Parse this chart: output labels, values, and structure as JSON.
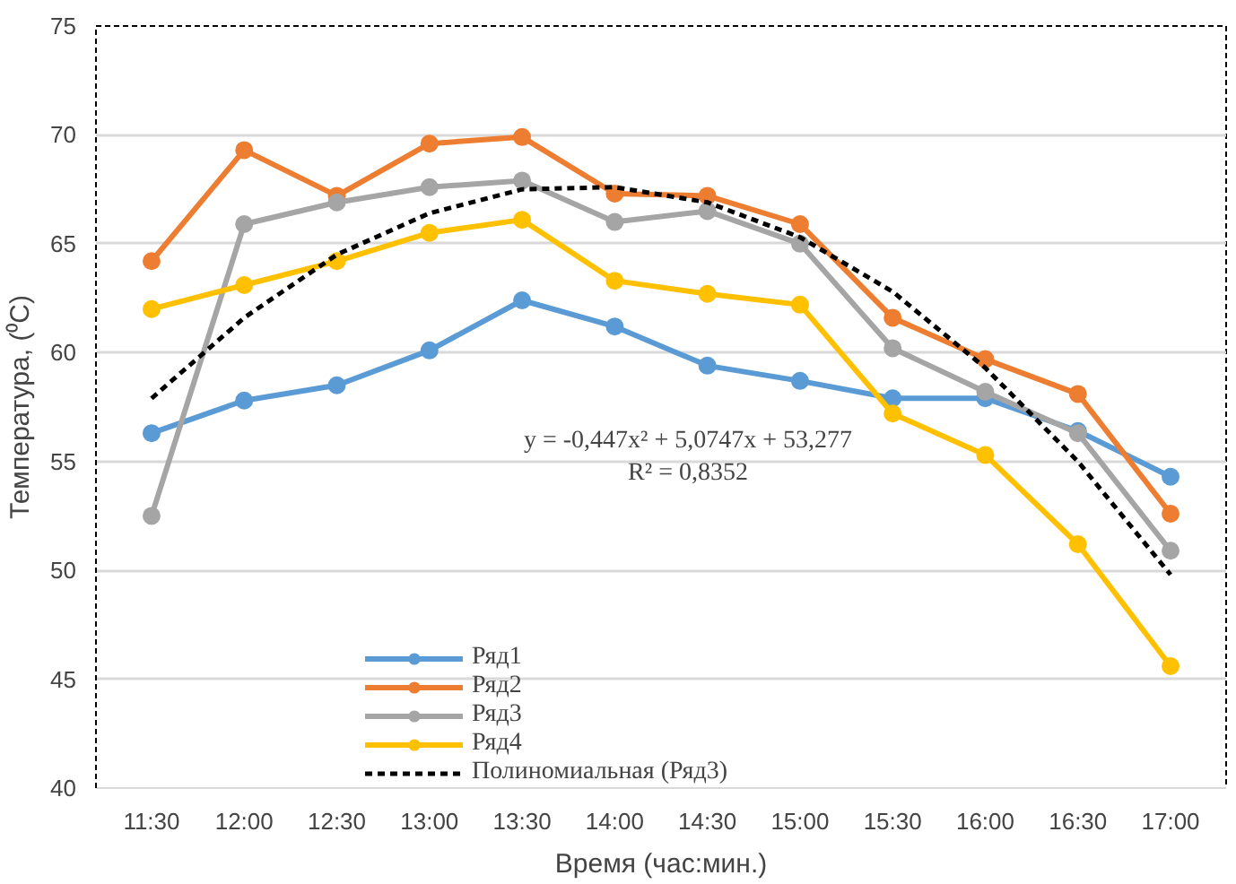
{
  "chart_data": {
    "type": "line",
    "xlabel": "Время (час:мин.)",
    "ylabel": "Температура, (⁰C)",
    "categories": [
      "11:30",
      "12:00",
      "12:30",
      "13:00",
      "13:30",
      "14:00",
      "14:30",
      "15:00",
      "15:30",
      "16:00",
      "16:30",
      "17:00"
    ],
    "series": [
      {
        "name": "Ряд1",
        "color": "#5b9bd5",
        "marker": "circle",
        "values": [
          56.3,
          57.8,
          58.5,
          60.1,
          62.4,
          61.2,
          59.4,
          58.7,
          57.9,
          57.9,
          56.4,
          54.3
        ]
      },
      {
        "name": "Ряд2",
        "color": "#ed7d31",
        "marker": "circle",
        "values": [
          64.2,
          69.3,
          67.2,
          69.6,
          69.9,
          67.3,
          67.2,
          65.9,
          61.6,
          59.7,
          58.1,
          52.6
        ]
      },
      {
        "name": "Ряд3",
        "color": "#a5a5a5",
        "marker": "circle",
        "values": [
          52.5,
          65.9,
          66.9,
          67.6,
          67.9,
          66.0,
          66.5,
          65.0,
          60.2,
          58.2,
          56.3,
          50.9
        ]
      },
      {
        "name": "Ряд4",
        "color": "#ffc000",
        "marker": "circle",
        "values": [
          62.0,
          63.1,
          64.2,
          65.5,
          66.1,
          63.3,
          62.7,
          62.2,
          57.2,
          55.3,
          51.2,
          45.6
        ]
      },
      {
        "name": "Полиномиальная (Ряд3)",
        "color": "#000000",
        "marker": "none",
        "line_style": "dashed",
        "values": [
          57.9,
          61.6,
          64.5,
          66.4,
          67.5,
          67.6,
          66.9,
          65.3,
          62.8,
          59.3,
          55.0,
          49.8
        ]
      }
    ],
    "ylim": [
      40,
      75
    ],
    "yticks": [
      40,
      45,
      50,
      55,
      60,
      65,
      70,
      75
    ],
    "grid": "y",
    "legend": "bottom",
    "annotations": [
      "y = -0,447x² + 5,0747x + 53,277",
      "R² = 0,8352"
    ]
  }
}
